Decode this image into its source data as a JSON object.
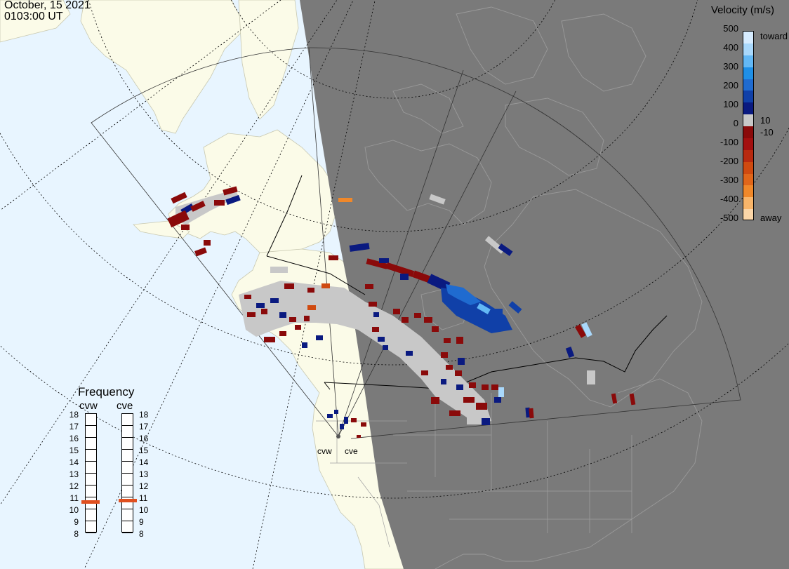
{
  "header": {
    "date": "October, 15 2021",
    "time": "0103:00 UT"
  },
  "velocity_legend": {
    "title": "Velocity (m/s)",
    "tick_labels": [
      "500",
      "400",
      "300",
      "200",
      "100",
      "0",
      "-100",
      "-200",
      "-300",
      "-400",
      "-500"
    ],
    "toward_label": "toward",
    "away_label": "away",
    "threshold_pos": "10",
    "threshold_neg": "-10",
    "colors": [
      "#d6ecff",
      "#a9d8fb",
      "#63b8f5",
      "#1f8fe6",
      "#1f6bd0",
      "#1040a8",
      "#0a1a80",
      "#c8c8c8",
      "#8a0a0a",
      "#a31010",
      "#b82a10",
      "#cf4a10",
      "#e0661a",
      "#f0882a",
      "#f8b56a",
      "#fbd6a8"
    ]
  },
  "frequency_panel": {
    "title": "Frequency",
    "radars": [
      {
        "name": "cvw",
        "frequency_mhz": 10.6
      },
      {
        "name": "cve",
        "frequency_mhz": 10.7
      }
    ],
    "scale": [
      "18",
      "17",
      "16",
      "15",
      "14",
      "13",
      "12",
      "11",
      "10",
      "9",
      "8"
    ]
  },
  "radar_sites": [
    {
      "name": "cvw"
    },
    {
      "name": "cve"
    }
  ],
  "map": {
    "night_shade_color": "#7a7a7a",
    "ocean_color": "#e8f5ff",
    "land_color": "#fbfbe8",
    "ground_scatter_color": "#c8c8c8"
  }
}
